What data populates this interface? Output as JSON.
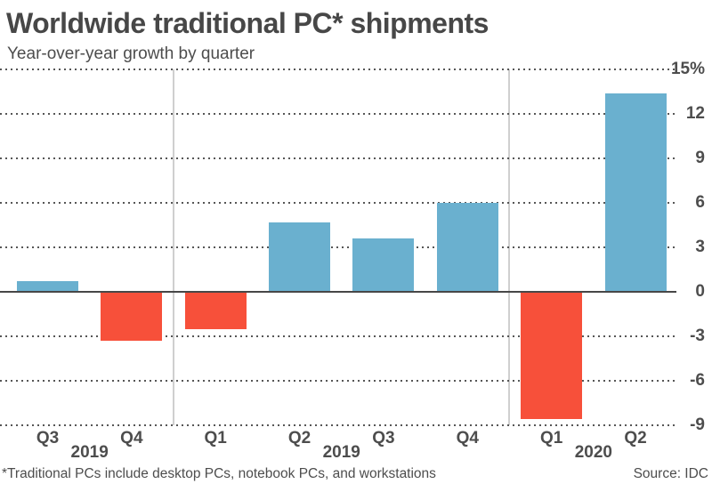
{
  "header": {
    "title": "Worldwide traditional PC* shipments",
    "subtitle": "Year-over-year growth by quarter"
  },
  "chart_data": {
    "type": "bar",
    "title": "Worldwide traditional PC* shipments",
    "subtitle": "Year-over-year growth by quarter",
    "unit": "percent year-over-year growth",
    "categories": [
      "Q3",
      "Q4",
      "Q1",
      "Q2",
      "Q3",
      "Q4",
      "Q1",
      "Q2"
    ],
    "values": [
      0.7,
      -3.3,
      -2.5,
      4.7,
      3.6,
      6.0,
      -8.6,
      13.4
    ],
    "year_labels": [
      {
        "label": "2019",
        "between": [
          0,
          1
        ]
      },
      {
        "label": "2019",
        "between": [
          3,
          4
        ]
      },
      {
        "label": "2020",
        "between": [
          6,
          7
        ]
      }
    ],
    "y_ticks": [
      {
        "label": "15%",
        "value": 15
      },
      {
        "label": "12",
        "value": 12
      },
      {
        "label": "9",
        "value": 9
      },
      {
        "label": "6",
        "value": 6
      },
      {
        "label": "3",
        "value": 3
      },
      {
        "label": "0",
        "value": 0
      },
      {
        "label": "-3",
        "value": -3
      },
      {
        "label": "-6",
        "value": -6
      },
      {
        "label": "-9",
        "value": -9
      }
    ],
    "ylim": [
      -9,
      15
    ],
    "grid": "horizontal-dotted",
    "legend": "none",
    "separators_between": [
      [
        1,
        2
      ],
      [
        5,
        6
      ]
    ],
    "colors": {
      "positive": "#6ab0cf",
      "negative": "#f7503a",
      "zero_line": "#474747",
      "separator": "#cfcfcf",
      "grid_dot": "#565656",
      "text": "#4d4d4d"
    }
  },
  "footer": {
    "footnote": "*Traditional PCs include desktop PCs, notebook PCs, and workstations",
    "source": "Source: IDC"
  }
}
